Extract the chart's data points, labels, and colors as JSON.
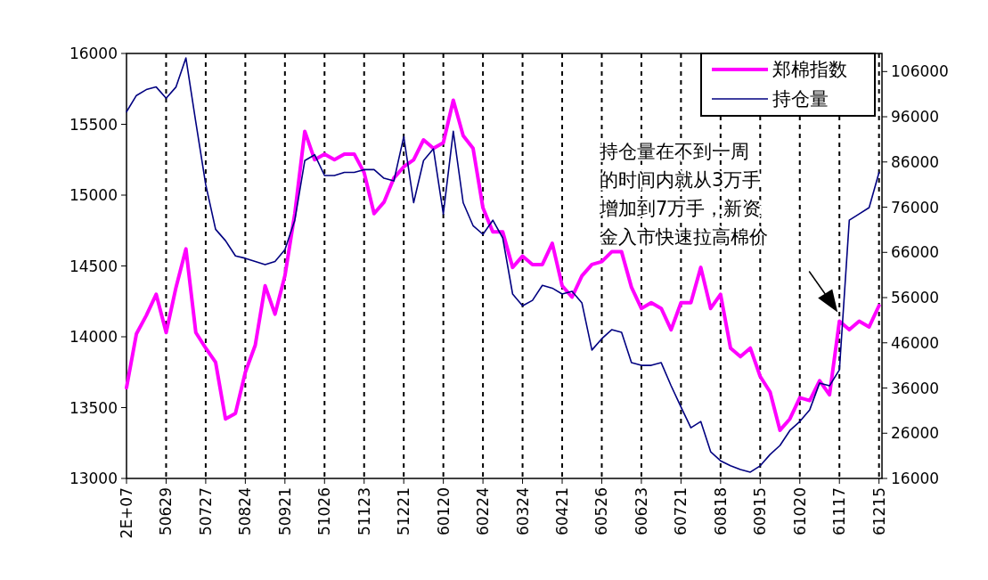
{
  "chart_data": {
    "type": "line",
    "categories": [
      "2E+07",
      null,
      null,
      null,
      "50629",
      null,
      null,
      null,
      "50727",
      null,
      null,
      null,
      "50824",
      null,
      null,
      null,
      "50921",
      null,
      null,
      null,
      "51026",
      null,
      null,
      null,
      "51123",
      null,
      null,
      null,
      "51221",
      null,
      null,
      null,
      "60120",
      null,
      null,
      null,
      "60224",
      null,
      null,
      null,
      "60324",
      null,
      null,
      null,
      "60421",
      null,
      null,
      null,
      "60526",
      null,
      null,
      null,
      "60623",
      null,
      null,
      null,
      "60721",
      null,
      null,
      null,
      "60818",
      null,
      null,
      null,
      "60915",
      null,
      null,
      null,
      "61020",
      null,
      null,
      null,
      "61117",
      null,
      null,
      null,
      "61215"
    ],
    "series": [
      {
        "name": "郑棉指数",
        "color": "#ff00ff",
        "values": [
          13640,
          14020,
          14150,
          14300,
          14030,
          14350,
          14620,
          14030,
          13920,
          13820,
          13420,
          13460,
          13750,
          13940,
          14360,
          14160,
          14430,
          14870,
          15450,
          15250,
          15290,
          15250,
          15290,
          15290,
          15160,
          14870,
          14950,
          15120,
          15200,
          15250,
          15390,
          15330,
          15370,
          15670,
          15420,
          15330,
          14910,
          14740,
          14740,
          14490,
          14570,
          14510,
          14510,
          14660,
          14360,
          14280,
          14430,
          14510,
          14530,
          14600,
          14600,
          14350,
          14200,
          14240,
          14200,
          14050,
          14240,
          14240,
          14490,
          14200,
          14300,
          13920,
          13860,
          13920,
          13720,
          13610,
          13340,
          13420,
          13570,
          13550,
          13690,
          13590,
          14110,
          14050,
          14110,
          14070,
          14220
        ]
      },
      {
        "name": "持仓量",
        "color": "#000080",
        "axis": "y2",
        "values": [
          97100,
          100700,
          102000,
          102600,
          100100,
          102600,
          109000,
          94800,
          81000,
          71100,
          68600,
          65200,
          64700,
          64000,
          63300,
          64000,
          66600,
          73100,
          86300,
          87600,
          83000,
          83000,
          83700,
          83700,
          84300,
          84300,
          82400,
          81800,
          91600,
          77000,
          86300,
          88900,
          74500,
          92800,
          77000,
          71900,
          70000,
          73100,
          69200,
          56800,
          54200,
          55400,
          58700,
          58100,
          56800,
          57400,
          54800,
          44400,
          46900,
          48900,
          48300,
          41600,
          41000,
          41000,
          41600,
          36500,
          31800,
          27200,
          28600,
          21900,
          19900,
          18800,
          18000,
          17400,
          18800,
          21300,
          23300,
          26600,
          28600,
          31200,
          37100,
          36500,
          40000,
          73100,
          74500,
          75900,
          83700
        ]
      }
    ],
    "ylim": [
      13000,
      16000
    ],
    "yticks": [
      13000,
      13500,
      14000,
      14500,
      15000,
      15500,
      16000
    ],
    "y2lim": [
      16000,
      110000
    ],
    "y2ticks": [
      16000,
      26000,
      36000,
      46000,
      56000,
      66000,
      76000,
      86000,
      96000,
      106000
    ],
    "grid": "x",
    "legend": "top right",
    "annotations": [
      "持仓量在不到一周",
      "的时间内就从3万手",
      "增加到7万手，新资",
      "金入市快速拉高棉价"
    ]
  }
}
